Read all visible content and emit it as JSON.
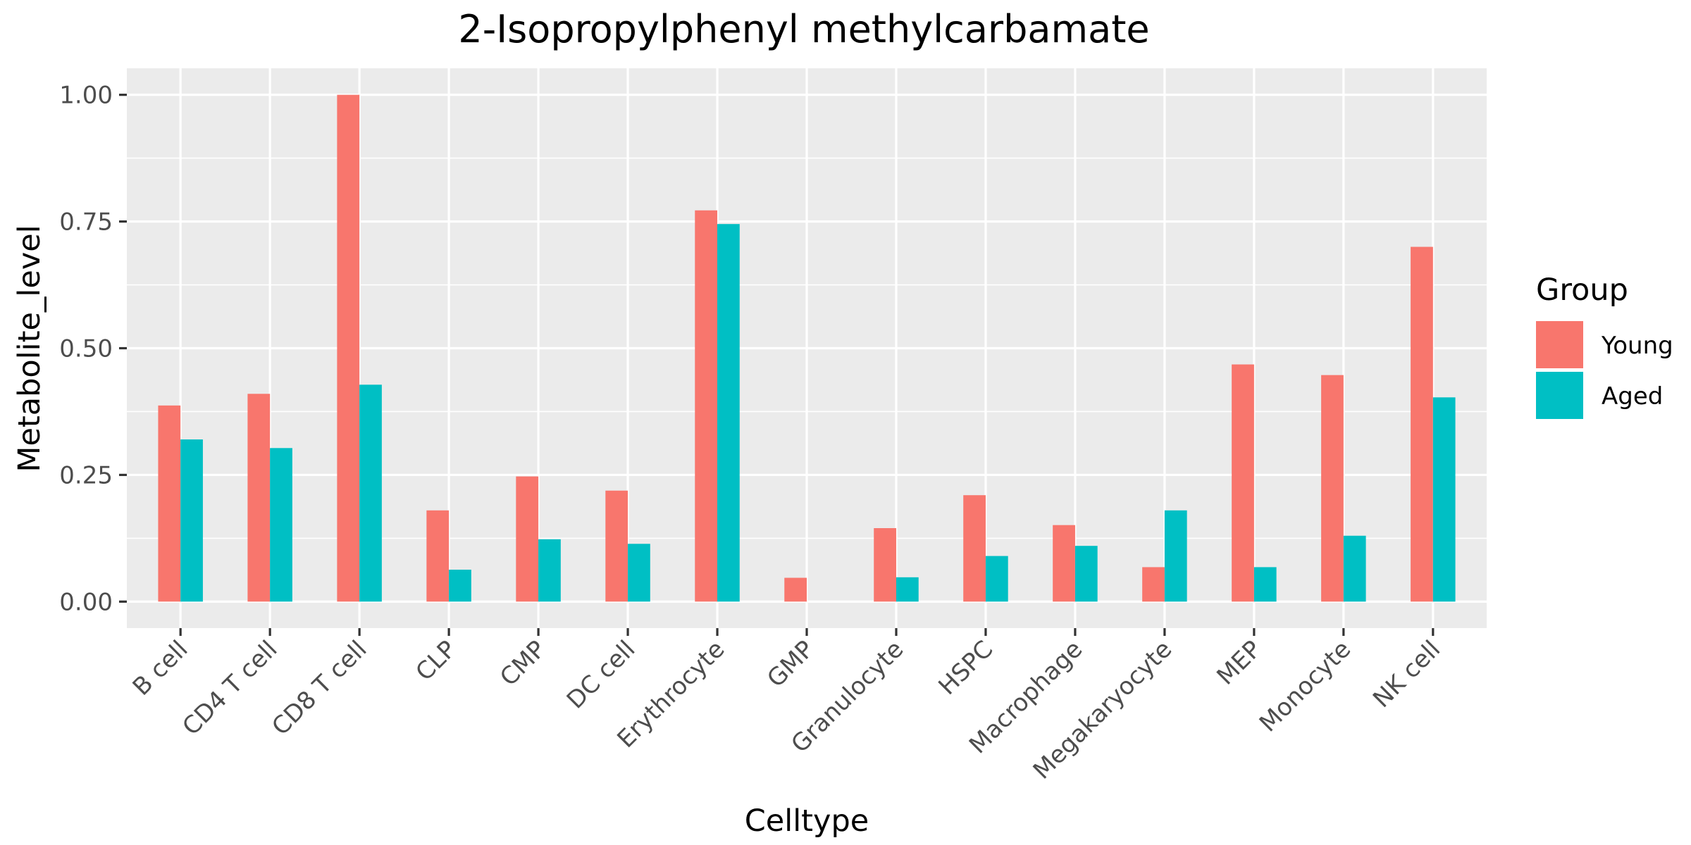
{
  "chart_data": {
    "type": "bar",
    "title": "2-Isopropylphenyl methylcarbamate",
    "xlabel": "Celltype",
    "ylabel": "Metabolite_level",
    "categories": [
      "B cell",
      "CD4 T cell",
      "CD8 T cell",
      "CLP",
      "CMP",
      "DC cell",
      "Erythrocyte",
      "GMP",
      "Granulocyte",
      "HSPC",
      "Macrophage",
      "Megakaryocyte",
      "MEP",
      "Monocyte",
      "NK cell"
    ],
    "series": [
      {
        "name": "Young",
        "color": "#F8766D",
        "values": [
          0.387,
          0.41,
          1.0,
          0.18,
          0.247,
          0.219,
          0.772,
          0.047,
          0.145,
          0.21,
          0.151,
          0.068,
          0.468,
          0.447,
          0.7
        ]
      },
      {
        "name": "Aged",
        "color": "#00BFC4",
        "values": [
          0.32,
          0.303,
          0.428,
          0.063,
          0.123,
          0.114,
          0.745,
          0.0,
          0.048,
          0.09,
          0.11,
          0.18,
          0.068,
          0.13,
          0.403
        ]
      }
    ],
    "ylim": [
      -0.0523,
      1.0523
    ],
    "yticks": [
      0.0,
      0.25,
      0.5,
      0.75,
      1.0
    ],
    "ytick_labels": [
      "0.00",
      "0.25",
      "0.50",
      "0.75",
      "1.00"
    ],
    "legend_title": "Group",
    "legend_position": "right",
    "grid": true,
    "panel_background": "#EBEBEB",
    "grid_color": "#FFFFFF"
  }
}
